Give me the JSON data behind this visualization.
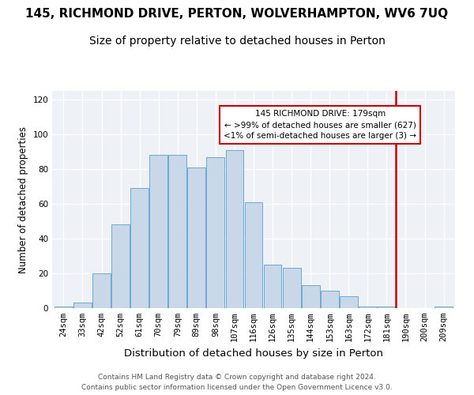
{
  "title": "145, RICHMOND DRIVE, PERTON, WOLVERHAMPTON, WV6 7UQ",
  "subtitle": "Size of property relative to detached houses in Perton",
  "xlabel": "Distribution of detached houses by size in Perton",
  "ylabel": "Number of detached properties",
  "categories": [
    "24sqm",
    "33sqm",
    "42sqm",
    "52sqm",
    "61sqm",
    "70sqm",
    "79sqm",
    "89sqm",
    "98sqm",
    "107sqm",
    "116sqm",
    "126sqm",
    "135sqm",
    "144sqm",
    "153sqm",
    "163sqm",
    "172sqm",
    "181sqm",
    "190sqm",
    "200sqm",
    "209sqm"
  ],
  "bar_heights": [
    1,
    3,
    20,
    48,
    69,
    88,
    88,
    81,
    87,
    91,
    61,
    25,
    23,
    13,
    10,
    7,
    1,
    1,
    0,
    0,
    1
  ],
  "bar_color": "#c8d8e8",
  "bar_edge_color": "#6aaad4",
  "vline_color": "#cc0000",
  "vline_x": 17.47,
  "annotation_title": "145 RICHMOND DRIVE: 179sqm",
  "annotation_line1": "← >99% of detached houses are smaller (627)",
  "annotation_line2": "<1% of semi-detached houses are larger (3) →",
  "annotation_box_color": "#cc0000",
  "ylim": [
    0,
    125
  ],
  "yticks": [
    0,
    20,
    40,
    60,
    80,
    100,
    120
  ],
  "footer": "Contains HM Land Registry data © Crown copyright and database right 2024.\nContains public sector information licensed under the Open Government Licence v3.0.",
  "title_fontsize": 11,
  "subtitle_fontsize": 10,
  "xlabel_fontsize": 9.5,
  "ylabel_fontsize": 8.5,
  "tick_fontsize": 7.5,
  "annotation_fontsize": 7.5,
  "footer_fontsize": 6.5,
  "background_color": "#eef2f7"
}
